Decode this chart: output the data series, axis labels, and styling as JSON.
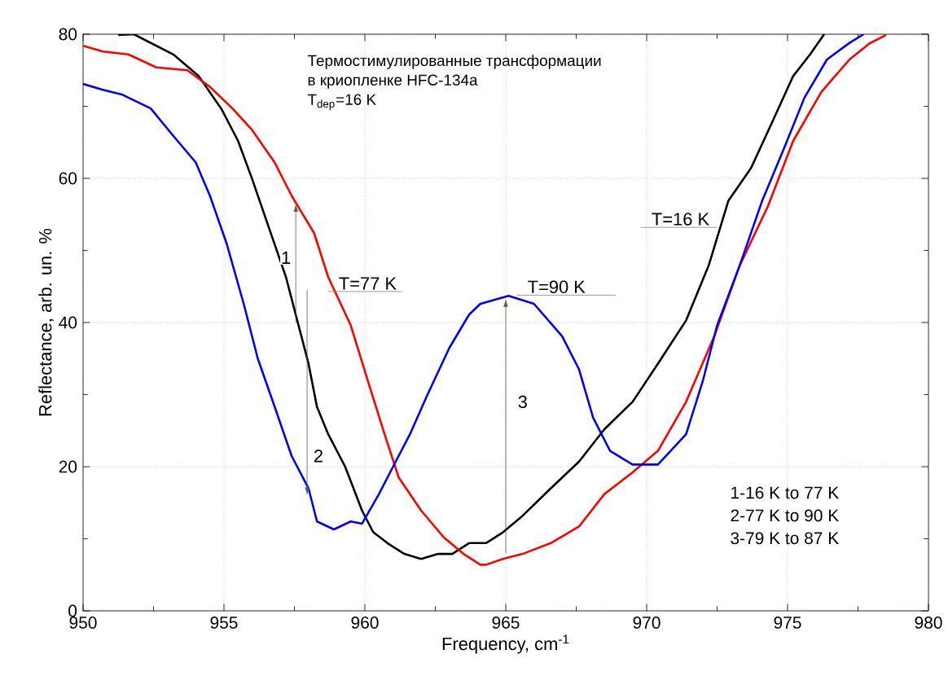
{
  "chart_data": {
    "type": "line",
    "title": "Термостимулированные трансформации\nв криопленке HFC-134a",
    "subtitle": "T$_{dep}$=16 K",
    "xlabel": "Frequency, cm$^{-1}$",
    "ylabel": "Reflectance, arb. un. %",
    "xlim": [
      950,
      980
    ],
    "xticks": [
      950,
      955,
      960,
      965,
      970,
      975,
      980
    ],
    "ylim": [
      0,
      80
    ],
    "yticks": [
      0,
      20,
      40,
      60,
      80
    ],
    "grid": true,
    "series": [
      {
        "name": "T=16 K",
        "color": "#000000",
        "x": [
          951.25,
          951.8,
          953.2,
          954.1,
          954.9,
          955.5,
          956.0,
          956.6,
          957.2,
          957.6,
          958.0,
          958.3,
          958.7,
          959.3,
          959.9,
          960.3,
          960.8,
          961.4,
          962.0,
          962.6,
          963.1,
          963.7,
          964.3,
          964.9,
          965.6,
          966.6,
          967.6,
          968.5,
          969.5,
          970.4,
          971.4,
          972.2,
          972.9,
          973.7,
          974.5,
          975.2,
          975.8,
          976.3
        ],
        "values": [
          79.9,
          80,
          77.2,
          74.2,
          69.7,
          65.2,
          59.9,
          53.1,
          46.3,
          40.3,
          34.3,
          28.3,
          24.5,
          20.0,
          13.9,
          10.9,
          9.4,
          7.9,
          7.2,
          7.9,
          7.9,
          9.4,
          9.4,
          10.9,
          13.2,
          17.0,
          20.7,
          25.2,
          29.0,
          34.3,
          40.3,
          47.9,
          56.9,
          61.4,
          68.2,
          74.2,
          77.2,
          80
        ]
      },
      {
        "name": "T=77 K",
        "color": "#ff0000",
        "x": [
          950,
          950.7,
          951.6,
          952.6,
          953.7,
          954.5,
          955.3,
          956.0,
          956.8,
          957.4,
          958.2,
          958.7,
          959.5,
          960.1,
          960.7,
          961.2,
          962.0,
          962.8,
          963.5,
          964.1,
          964.3,
          964.9,
          965.6,
          966.6,
          967.6,
          968.5,
          969.5,
          970.4,
          971.4,
          972.4,
          973.3,
          974.3,
          975.2,
          976.2,
          977.2,
          977.9,
          978.5
        ],
        "values": [
          78.4,
          77.6,
          77.2,
          75.4,
          75.0,
          72.7,
          69.7,
          66.7,
          62.2,
          57.6,
          52.4,
          46.3,
          39.6,
          32.0,
          24.5,
          18.5,
          13.9,
          10.2,
          7.9,
          6.4,
          6.4,
          7.2,
          7.9,
          9.4,
          11.7,
          16.2,
          19.2,
          22.2,
          29.0,
          38.1,
          47.9,
          56.1,
          65.2,
          72.0,
          76.5,
          78.7,
          79.9
        ]
      },
      {
        "name": "T=90 K",
        "color": "#0000ff",
        "x": [
          950,
          950.7,
          951.4,
          952.4,
          953.2,
          954.0,
          954.5,
          955.1,
          955.7,
          956.2,
          956.8,
          957.4,
          958.0,
          958.3,
          958.9,
          959.5,
          959.9,
          960.5,
          961.0,
          961.6,
          962.2,
          963.0,
          963.7,
          964.1,
          965.1,
          966.0,
          967.0,
          967.6,
          968.1,
          968.7,
          969.5,
          970.4,
          971.4,
          972.0,
          972.5,
          973.3,
          974.1,
          974.9,
          975.6,
          976.4,
          977.2,
          977.7
        ],
        "values": [
          73.1,
          72.3,
          71.6,
          69.7,
          65.9,
          62.2,
          57.6,
          50.9,
          42.6,
          35.0,
          28.3,
          21.5,
          17.0,
          12.4,
          11.3,
          12.4,
          12.1,
          16.2,
          20.0,
          24.5,
          29.8,
          36.5,
          41.1,
          42.6,
          43.7,
          42.6,
          38.1,
          33.5,
          26.8,
          22.2,
          20.3,
          20.3,
          24.5,
          32.0,
          39.6,
          47.9,
          56.9,
          64.4,
          71.2,
          76.5,
          78.8,
          80
        ]
      }
    ],
    "annotations": [
      "1",
      "2",
      "3",
      "1-16 K to 77 K",
      "2-77 K to 90 K",
      "3-79 K to 87 K"
    ]
  }
}
